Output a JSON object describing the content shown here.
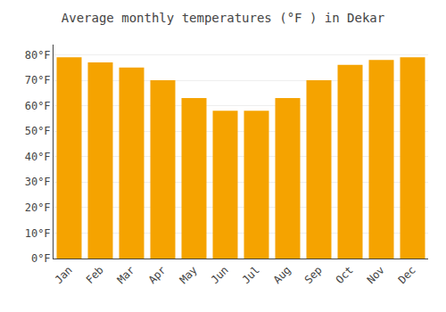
{
  "chart_data": {
    "type": "bar",
    "title": "Average monthly temperatures (°F ) in Dekar",
    "categories": [
      "Jan",
      "Feb",
      "Mar",
      "Apr",
      "May",
      "Jun",
      "Jul",
      "Aug",
      "Sep",
      "Oct",
      "Nov",
      "Dec"
    ],
    "values": [
      79,
      77,
      75,
      70,
      63,
      58,
      58,
      63,
      70,
      76,
      78,
      79
    ],
    "color": "#F5A300",
    "ylim": [
      0,
      84
    ],
    "yticks": [
      {
        "value": 0,
        "label": "0°F"
      },
      {
        "value": 10,
        "label": "10°F"
      },
      {
        "value": 20,
        "label": "20°F"
      },
      {
        "value": 30,
        "label": "30°F"
      },
      {
        "value": 40,
        "label": "40°F"
      },
      {
        "value": 50,
        "label": "50°F"
      },
      {
        "value": 60,
        "label": "60°F"
      },
      {
        "value": 70,
        "label": "70°F"
      },
      {
        "value": 80,
        "label": "80°F"
      }
    ],
    "grid": true
  }
}
